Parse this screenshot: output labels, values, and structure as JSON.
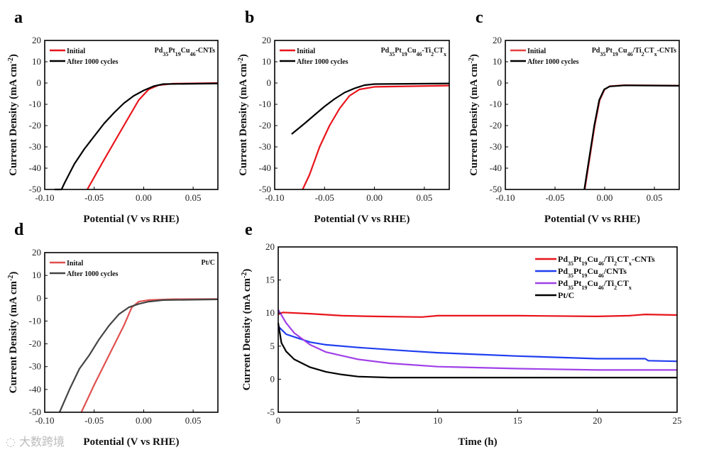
{
  "watermark": "大数跨境",
  "chart_data": [
    {
      "panel": "a",
      "type": "line",
      "xlabel": [
        [
          "Potential (V vs RHE)",
          ""
        ]
      ],
      "ylabel": [
        [
          "Current Density (mA cm",
          ""
        ],
        [
          "-2",
          "sup"
        ],
        [
          ")",
          ""
        ]
      ],
      "xlim": [
        -0.1,
        0.075
      ],
      "ylim": [
        -50,
        20
      ],
      "xticks": [
        "-0.10",
        "-0.05",
        "0.00",
        "0.05"
      ],
      "xtick_values": [
        -0.1,
        -0.05,
        0,
        0.05
      ],
      "yticks": [
        "-50",
        "-40",
        "-30",
        "-20",
        "-10",
        "0",
        "10",
        "20"
      ],
      "ytick_values": [
        -50,
        -40,
        -30,
        -20,
        -10,
        0,
        10,
        20
      ],
      "annotation": [
        [
          "Pd",
          ""
        ],
        [
          "35",
          "sub"
        ],
        [
          "Pt",
          ""
        ],
        [
          "19",
          "sub"
        ],
        [
          "Cu",
          ""
        ],
        [
          "46",
          "sub"
        ],
        [
          "-CNTs",
          ""
        ]
      ],
      "series": [
        {
          "name": [
            [
              "Initial",
              ""
            ]
          ],
          "color": "#e8141b",
          "points": [
            [
              -0.057,
              -50
            ],
            [
              -0.04,
              -36
            ],
            [
              -0.02,
              -20
            ],
            [
              -0.005,
              -8
            ],
            [
              0.005,
              -3
            ],
            [
              0.015,
              -1
            ],
            [
              0.03,
              -0.3
            ],
            [
              0.075,
              0
            ]
          ]
        },
        {
          "name": [
            [
              "After 1000 cycles",
              ""
            ]
          ],
          "color": "#000000",
          "points": [
            [
              -0.09,
              -50
            ],
            [
              -0.083,
              -50
            ],
            [
              -0.08,
              -47
            ],
            [
              -0.07,
              -38
            ],
            [
              -0.06,
              -31
            ],
            [
              -0.05,
              -25
            ],
            [
              -0.04,
              -19
            ],
            [
              -0.03,
              -14
            ],
            [
              -0.02,
              -9.5
            ],
            [
              -0.01,
              -6
            ],
            [
              0,
              -3.5
            ],
            [
              0.01,
              -1.5
            ],
            [
              0.02,
              -0.5
            ],
            [
              0.075,
              -0.2
            ]
          ]
        }
      ]
    },
    {
      "panel": "b",
      "type": "line",
      "xlabel": [
        [
          "Potential (V vs RHE)",
          ""
        ]
      ],
      "ylabel": [
        [
          "Current Density (mA cm",
          ""
        ],
        [
          "-2",
          "sup"
        ],
        [
          ")",
          ""
        ]
      ],
      "xlim": [
        -0.1,
        0.075
      ],
      "ylim": [
        -50,
        20
      ],
      "xticks": [
        "-0.10",
        "-0.05",
        "0.00",
        "0.05"
      ],
      "xtick_values": [
        -0.1,
        -0.05,
        0,
        0.05
      ],
      "yticks": [
        "-50",
        "-40",
        "-30",
        "-20",
        "-10",
        "0",
        "10",
        "20"
      ],
      "ytick_values": [
        -50,
        -40,
        -30,
        -20,
        -10,
        0,
        10,
        20
      ],
      "annotation": [
        [
          "Pd",
          ""
        ],
        [
          "35",
          "sub"
        ],
        [
          "Pt",
          ""
        ],
        [
          "19",
          "sub"
        ],
        [
          "Cu",
          ""
        ],
        [
          "46",
          "sub"
        ],
        [
          "-Ti",
          ""
        ],
        [
          "2",
          "sub"
        ],
        [
          "CT",
          ""
        ],
        [
          "x",
          "sub"
        ]
      ],
      "series": [
        {
          "name": [
            [
              "Initial",
              ""
            ]
          ],
          "color": "#e8141b",
          "points": [
            [
              -0.072,
              -50
            ],
            [
              -0.065,
              -43
            ],
            [
              -0.055,
              -30
            ],
            [
              -0.045,
              -20
            ],
            [
              -0.035,
              -12
            ],
            [
              -0.025,
              -6
            ],
            [
              -0.015,
              -3
            ],
            [
              0,
              -1.8
            ],
            [
              0.075,
              -1.2
            ]
          ]
        },
        {
          "name": [
            [
              "After 1000 cycles",
              ""
            ]
          ],
          "color": "#000000",
          "points": [
            [
              -0.083,
              -24
            ],
            [
              -0.07,
              -19
            ],
            [
              -0.06,
              -15
            ],
            [
              -0.05,
              -11
            ],
            [
              -0.04,
              -7.5
            ],
            [
              -0.03,
              -4.5
            ],
            [
              -0.02,
              -2.5
            ],
            [
              -0.01,
              -1
            ],
            [
              0,
              -0.5
            ],
            [
              0.075,
              -0.2
            ]
          ]
        }
      ]
    },
    {
      "panel": "c",
      "type": "line",
      "xlabel": [
        [
          "Potential (V vs RHE)",
          ""
        ]
      ],
      "ylabel": [
        [
          "Current Density (mA cm",
          ""
        ],
        [
          "-2",
          "sup"
        ],
        [
          ")",
          ""
        ]
      ],
      "xlim": [
        -0.1,
        0.075
      ],
      "ylim": [
        -50,
        20
      ],
      "xticks": [
        "-0.10",
        "-0.05",
        "0.00",
        "0.05"
      ],
      "xtick_values": [
        -0.1,
        -0.05,
        0,
        0.05
      ],
      "yticks": [
        "-50",
        "-40",
        "-30",
        "-20",
        "-10",
        "0",
        "10",
        "20"
      ],
      "ytick_values": [
        -50,
        -40,
        -30,
        -20,
        -10,
        0,
        10,
        20
      ],
      "annotation": [
        [
          "Pd",
          ""
        ],
        [
          "35",
          "sub"
        ],
        [
          "Pt",
          ""
        ],
        [
          "19",
          "sub"
        ],
        [
          "Cu",
          ""
        ],
        [
          "46",
          "sub"
        ],
        [
          "/Ti",
          ""
        ],
        [
          "2",
          "sub"
        ],
        [
          "CT",
          ""
        ],
        [
          "x",
          "sub"
        ],
        [
          "-CNTs",
          ""
        ]
      ],
      "series": [
        {
          "name": [
            [
              "Initial",
              ""
            ]
          ],
          "color": "#e84040",
          "points": [
            [
              -0.02,
              -50
            ],
            [
              -0.015,
              -35
            ],
            [
              -0.01,
              -20
            ],
            [
              -0.005,
              -8
            ],
            [
              0,
              -3
            ],
            [
              0.005,
              -1.5
            ],
            [
              0.02,
              -1
            ],
            [
              0.075,
              -1.2
            ]
          ]
        },
        {
          "name": [
            [
              "After 1000 cycles",
              ""
            ]
          ],
          "color": "#000000",
          "points": [
            [
              -0.0205,
              -50
            ],
            [
              -0.0155,
              -35
            ],
            [
              -0.0105,
              -20
            ],
            [
              -0.0055,
              -8
            ],
            [
              -0.0005,
              -3
            ],
            [
              0.005,
              -1.6
            ],
            [
              0.02,
              -1.1
            ],
            [
              0.075,
              -1.3
            ]
          ]
        }
      ]
    },
    {
      "panel": "d",
      "type": "line",
      "xlabel": [
        [
          "Potential (V vs RHE)",
          ""
        ]
      ],
      "ylabel": [
        [
          "Current Density (mA cm",
          ""
        ],
        [
          "-2",
          "sup"
        ],
        [
          ")",
          ""
        ]
      ],
      "xlim": [
        -0.1,
        0.075
      ],
      "ylim": [
        -50,
        20
      ],
      "xticks": [
        "-0.10",
        "-0.05",
        "0.00",
        "0.05"
      ],
      "xtick_values": [
        -0.1,
        -0.05,
        0,
        0.05
      ],
      "yticks": [
        "-50",
        "-40",
        "-30",
        "-20",
        "-10",
        "0",
        "10",
        "20"
      ],
      "ytick_values": [
        -50,
        -40,
        -30,
        -20,
        -10,
        0,
        10,
        20
      ],
      "annotation": [
        [
          "Pt/C",
          ""
        ]
      ],
      "series": [
        {
          "name": [
            [
              "Inital",
              ""
            ]
          ],
          "color": "#e05050",
          "points": [
            [
              -0.063,
              -50
            ],
            [
              -0.05,
              -38
            ],
            [
              -0.035,
              -25
            ],
            [
              -0.02,
              -12
            ],
            [
              -0.012,
              -4
            ],
            [
              -0.005,
              -1.5
            ],
            [
              0.005,
              -0.8
            ],
            [
              0.03,
              -0.4
            ],
            [
              0.075,
              -0.3
            ]
          ]
        },
        {
          "name": [
            [
              "After 1000 cycles",
              ""
            ]
          ],
          "color": "#444444",
          "points": [
            [
              -0.085,
              -50
            ],
            [
              -0.075,
              -40
            ],
            [
              -0.065,
              -31
            ],
            [
              -0.055,
              -25
            ],
            [
              -0.045,
              -18
            ],
            [
              -0.035,
              -12
            ],
            [
              -0.025,
              -7
            ],
            [
              -0.015,
              -4
            ],
            [
              -0.005,
              -2.5
            ],
            [
              0.005,
              -1.5
            ],
            [
              0.02,
              -0.8
            ],
            [
              0.075,
              -0.5
            ]
          ]
        }
      ]
    },
    {
      "panel": "e",
      "type": "line",
      "xlabel": [
        [
          "Time (h)",
          ""
        ]
      ],
      "ylabel": [
        [
          "Current Density (mA cm",
          ""
        ],
        [
          "-2",
          "sup"
        ],
        [
          ")",
          ""
        ]
      ],
      "xlim": [
        0,
        25
      ],
      "ylim": [
        -5,
        20
      ],
      "xticks": [
        "0",
        "5",
        "10",
        "15",
        "20",
        "25"
      ],
      "xtick_values": [
        0,
        5,
        10,
        15,
        20,
        25
      ],
      "yticks": [
        "-5",
        "0",
        "5",
        "10",
        "15",
        "20"
      ],
      "ytick_values": [
        -5,
        0,
        5,
        10,
        15,
        20
      ],
      "annotation": [],
      "series": [
        {
          "name": [
            [
              "Pd",
              ""
            ],
            [
              "35",
              "sub"
            ],
            [
              "Pt",
              ""
            ],
            [
              "19",
              "sub"
            ],
            [
              "Cu",
              ""
            ],
            [
              "46",
              "sub"
            ],
            [
              "/Ti",
              ""
            ],
            [
              "2",
              "sub"
            ],
            [
              "CT",
              ""
            ],
            [
              "x",
              "sub"
            ],
            [
              "-CNTs",
              ""
            ]
          ],
          "color": "#e8141b",
          "points": [
            [
              0,
              9.8
            ],
            [
              0.3,
              10.1
            ],
            [
              2,
              9.9
            ],
            [
              4,
              9.6
            ],
            [
              6,
              9.5
            ],
            [
              9,
              9.4
            ],
            [
              10,
              9.6
            ],
            [
              15,
              9.6
            ],
            [
              20,
              9.5
            ],
            [
              22,
              9.6
            ],
            [
              23,
              9.8
            ],
            [
              25,
              9.7
            ]
          ]
        },
        {
          "name": [
            [
              "Pd",
              ""
            ],
            [
              "35",
              "sub"
            ],
            [
              "Pt",
              ""
            ],
            [
              "19",
              "sub"
            ],
            [
              "Cu",
              ""
            ],
            [
              "46",
              "sub"
            ],
            [
              "/CNTs",
              ""
            ]
          ],
          "color": "#1f3ef0",
          "points": [
            [
              0,
              8
            ],
            [
              0.5,
              6.8
            ],
            [
              1,
              6.4
            ],
            [
              2,
              5.6
            ],
            [
              3,
              5.2
            ],
            [
              5,
              4.8
            ],
            [
              8,
              4.3
            ],
            [
              10,
              4.0
            ],
            [
              12,
              3.8
            ],
            [
              15,
              3.5
            ],
            [
              20,
              3.1
            ],
            [
              23,
              3.1
            ],
            [
              23.2,
              2.8
            ],
            [
              25,
              2.7
            ]
          ]
        },
        {
          "name": [
            [
              "Pd",
              ""
            ],
            [
              "35",
              "sub"
            ],
            [
              "Pt",
              ""
            ],
            [
              "19",
              "sub"
            ],
            [
              "Cu",
              ""
            ],
            [
              "46",
              "sub"
            ],
            [
              "/Ti",
              ""
            ],
            [
              "2",
              "sub"
            ],
            [
              "CT",
              ""
            ],
            [
              "x",
              "sub"
            ]
          ],
          "color": "#a040e8",
          "points": [
            [
              0,
              10.5
            ],
            [
              0.5,
              8.5
            ],
            [
              1,
              7
            ],
            [
              2,
              5.2
            ],
            [
              3,
              4.1
            ],
            [
              5,
              3
            ],
            [
              7,
              2.4
            ],
            [
              10,
              1.9
            ],
            [
              15,
              1.6
            ],
            [
              20,
              1.4
            ],
            [
              25,
              1.4
            ]
          ]
        },
        {
          "name": [
            [
              "Pt/C",
              ""
            ]
          ],
          "color": "#000000",
          "points": [
            [
              0,
              8.5
            ],
            [
              0.2,
              5.5
            ],
            [
              0.5,
              4.2
            ],
            [
              1,
              3
            ],
            [
              2,
              1.8
            ],
            [
              3,
              1.1
            ],
            [
              4,
              0.7
            ],
            [
              5,
              0.4
            ],
            [
              7,
              0.25
            ],
            [
              25,
              0.25
            ]
          ]
        }
      ]
    }
  ]
}
